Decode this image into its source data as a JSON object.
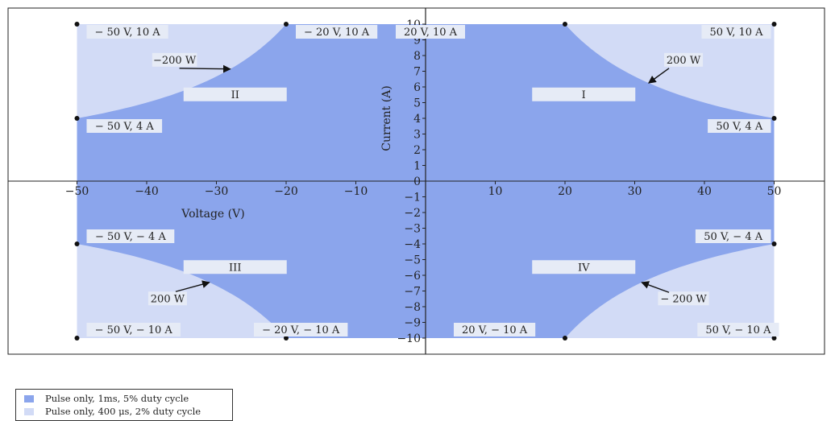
{
  "chart_data": {
    "type": "area",
    "xlabel": "Voltage (V)",
    "ylabel": "Current (A)",
    "xlim": [
      -60,
      60
    ],
    "ylim": [
      -10,
      10
    ],
    "x_ticks": [
      -50,
      -40,
      -30,
      -20,
      -10,
      0,
      10,
      20,
      30,
      40,
      50
    ],
    "x_tick_labels": [
      "−50",
      "−40",
      "−30",
      "−20",
      "−10",
      "0",
      "10",
      "20",
      "30",
      "40",
      "50"
    ],
    "y_ticks": [
      -10,
      -9,
      -8,
      -7,
      -6,
      -5,
      -4,
      -3,
      -2,
      -1,
      0,
      1,
      2,
      3,
      4,
      5,
      6,
      7,
      8,
      9,
      10
    ],
    "y_tick_labels": [
      "−10",
      "−9",
      "−8",
      "−7",
      "−6",
      "−5",
      "−4",
      "−3",
      "−2",
      "−1",
      "0",
      "1",
      "2",
      "3",
      "4",
      "5",
      "6",
      "7",
      "8",
      "9",
      "10"
    ],
    "grid": false,
    "series": [
      {
        "name": "Pulse only, 1ms, 5% duty cycle",
        "color": "#8ba5ec",
        "boundary": "constant power 200 W, limited to 50 V and 10 A, all four quadrants",
        "power_w": 200,
        "v_max": 50,
        "i_max": 10
      },
      {
        "name": "Pulse only, 400 μs, 2% duty cycle",
        "color": "#d2dbf6",
        "boundary": "full rectangle ±50 V, ±10 A",
        "v_max": 50,
        "i_max": 10
      }
    ],
    "points": [
      {
        "x": -50,
        "y": 10
      },
      {
        "x": -20,
        "y": 10
      },
      {
        "x": -50,
        "y": 4
      },
      {
        "x": 20,
        "y": 10
      },
      {
        "x": 50,
        "y": 10
      },
      {
        "x": 50,
        "y": 4
      },
      {
        "x": -50,
        "y": -4
      },
      {
        "x": -50,
        "y": -10
      },
      {
        "x": -20,
        "y": -10
      },
      {
        "x": 20,
        "y": -10
      },
      {
        "x": 50,
        "y": -10
      },
      {
        "x": 50,
        "y": -4
      }
    ],
    "point_labels": [
      {
        "text": "− 50 V, 10 A",
        "x": -50,
        "y": 10
      },
      {
        "text": "− 20 V, 10 A",
        "x": -20,
        "y": 10
      },
      {
        "text": "− 50 V, 4 A",
        "x": -50,
        "y": 4
      },
      {
        "text": "20 V, 10 A",
        "x": 20,
        "y": 10
      },
      {
        "text": "50 V, 10 A",
        "x": 50,
        "y": 10
      },
      {
        "text": "50 V, 4 A",
        "x": 50,
        "y": 4
      },
      {
        "text": "− 50 V, − 4 A",
        "x": -50,
        "y": -4
      },
      {
        "text": "50 V, − 4 A",
        "x": 50,
        "y": -4
      },
      {
        "text": "− 50 V, − 10 A",
        "x": -50,
        "y": -10
      },
      {
        "text": "− 20 V, − 10 A",
        "x": -20,
        "y": -10
      },
      {
        "text": "20 V, − 10 A",
        "x": 20,
        "y": -10
      },
      {
        "text": "50 V, − 10 A",
        "x": 50,
        "y": -10
      }
    ],
    "quadrant_labels": [
      {
        "text": "I",
        "x": 25,
        "y": 5.5
      },
      {
        "text": "II",
        "x": -25,
        "y": 5.5
      },
      {
        "text": "III",
        "x": -25,
        "y": -5.5
      },
      {
        "text": "IV",
        "x": 25,
        "y": -5.5
      }
    ],
    "annotations": [
      {
        "text": "−200 W",
        "x": -36,
        "y": 7.7
      },
      {
        "text": "200 W",
        "x": 37,
        "y": 7.7
      },
      {
        "text": "200 W",
        "x": -37,
        "y": -7.5
      },
      {
        "text": "− 200 W",
        "x": 37,
        "y": -7.5
      }
    ]
  }
}
